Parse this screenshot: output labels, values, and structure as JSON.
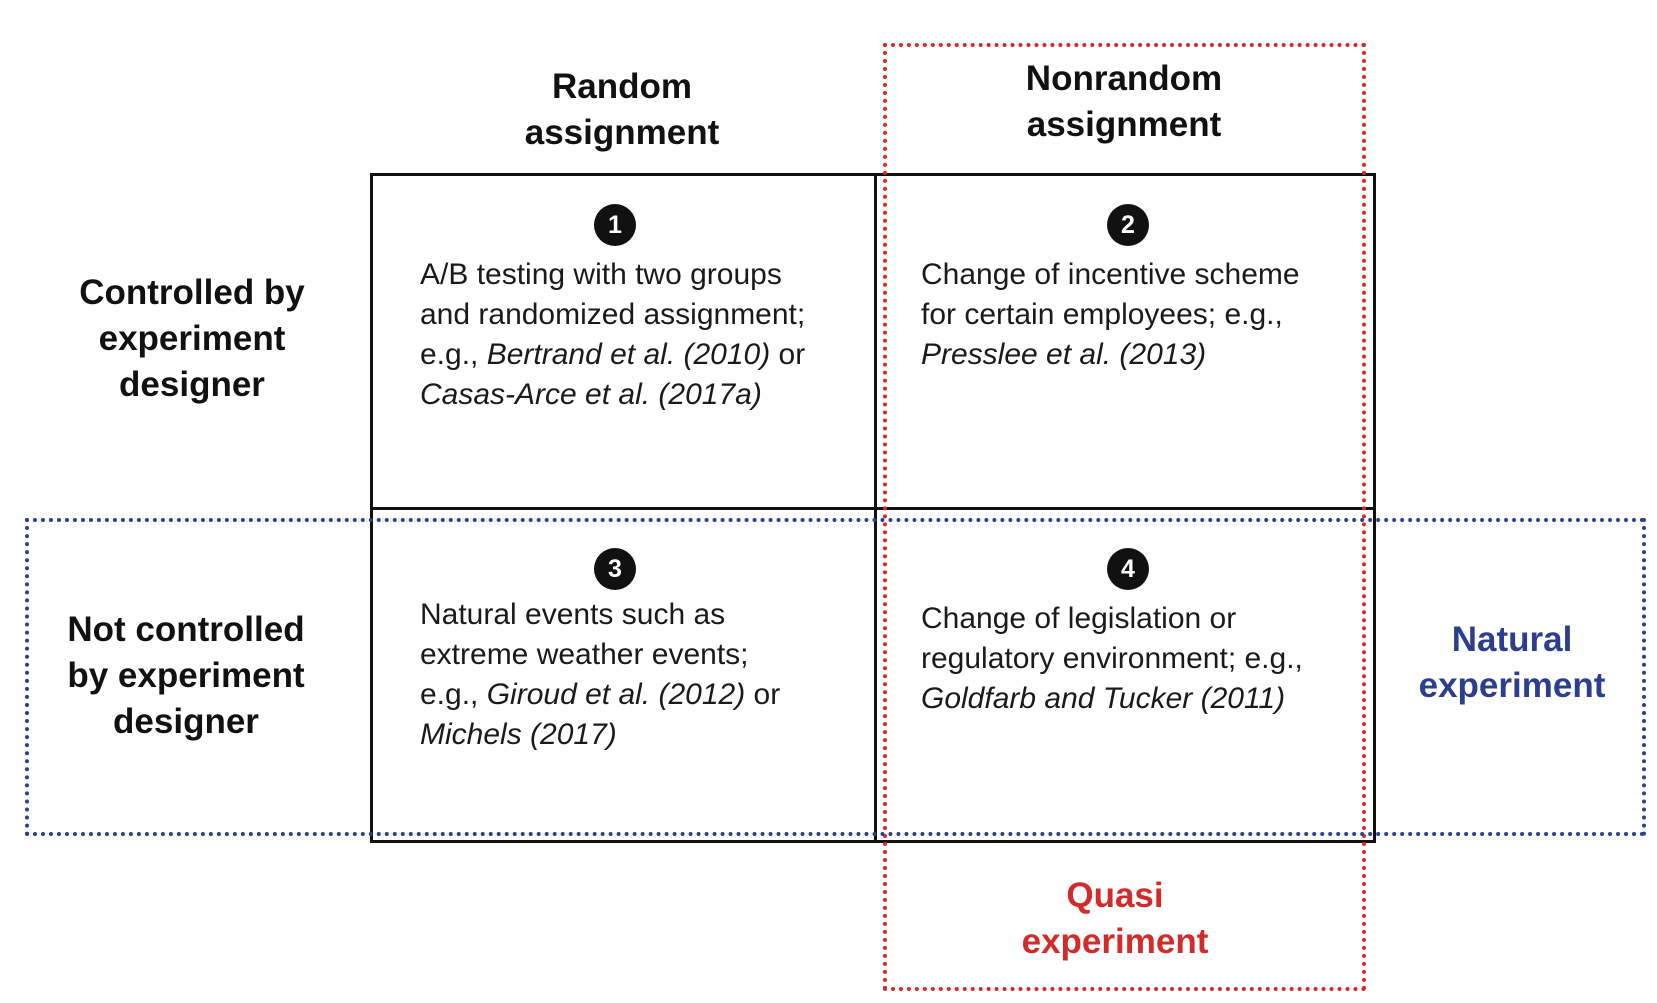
{
  "columns": [
    {
      "line1": "Random",
      "line2": "assignment"
    },
    {
      "line1": "Nonrandom",
      "line2": "assignment"
    }
  ],
  "rows": [
    {
      "line1": "Controlled by",
      "line2": "experiment",
      "line3": "designer"
    },
    {
      "line1": "Not controlled",
      "line2": "by experiment",
      "line3": "designer"
    }
  ],
  "cells": [
    {
      "number": "1",
      "l1": "A/B testing with two groups",
      "l2": "and randomized assignment;",
      "l3_pre": "e.g., ",
      "l3_cite": "Bertrand et al. (2010)",
      "l3_post": " or",
      "l4_cite": "Casas-Arce et al. (2017a)"
    },
    {
      "number": "2",
      "l1": "Change of incentive scheme",
      "l2": "for certain employees; e.g.,",
      "l3_cite": "Presslee et al. (2013)"
    },
    {
      "number": "3",
      "l1": "Natural events such as",
      "l2": "extreme weather events;",
      "l3_pre": "e.g., ",
      "l3_cite": "Giroud et al. (2012)",
      "l3_post": " or",
      "l4_cite": "Michels (2017)"
    },
    {
      "number": "4",
      "l1": "Change of legislation or",
      "l2": "regulatory environment; e.g.,",
      "l3_cite": "Goldfarb and Tucker (2011)"
    }
  ],
  "overlays": {
    "quasi": {
      "line1": "Quasi",
      "line2": "experiment",
      "color": "#d42a2a"
    },
    "natural": {
      "line1": "Natural",
      "line2": "experiment",
      "color": "#2b3f8e"
    }
  }
}
